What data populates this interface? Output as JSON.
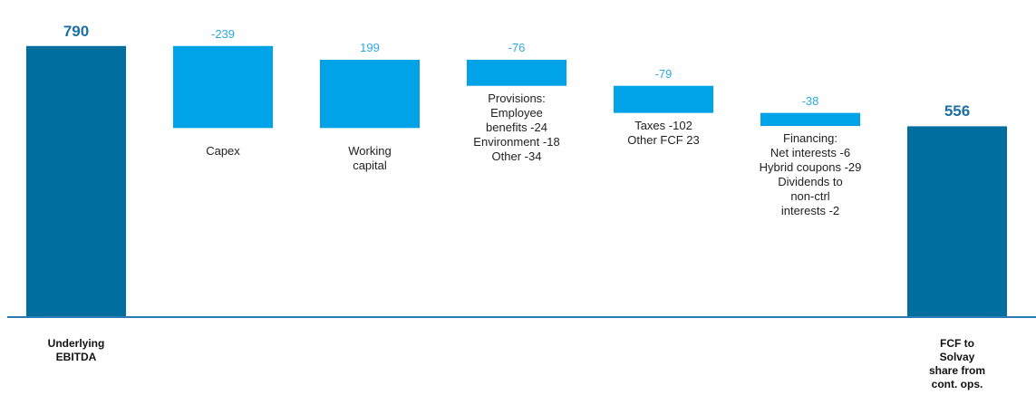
{
  "chart_data": {
    "type": "waterfall",
    "categories": [
      "Underlying\nEBITDA",
      "Capex",
      "Working\ncapital",
      "Provisions:\nEmployee\nbenefits -24\nEnvironment -18\nOther -34",
      "Taxes -102\nOther FCF 23",
      "Financing:\nNet interests -6\nHybrid coupons -29\nDividends to\nnon-ctrl\ninterests -2",
      "FCF to\nSolvay\nshare from\ncont. ops."
    ],
    "values": [
      790,
      -239,
      199,
      -76,
      -79,
      -38,
      556
    ],
    "measure": [
      "absolute",
      "relative",
      "relative",
      "relative",
      "relative",
      "relative",
      "absolute"
    ],
    "total_color": "#006f9f",
    "delta_color": "#00a2e8",
    "total_label_color": "#1b6fa3",
    "delta_label_color": "#2aaae2",
    "axis_color": "#2a7ab5",
    "ylim": [
      0,
      800
    ]
  }
}
